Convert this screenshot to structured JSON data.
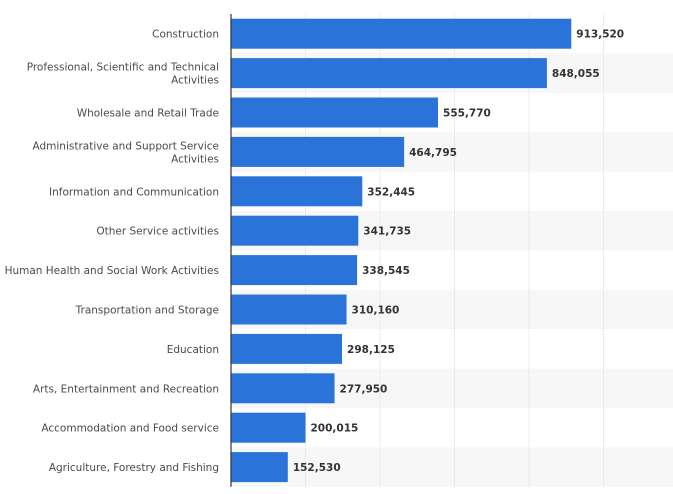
{
  "chart_data": {
    "type": "bar",
    "orientation": "horizontal",
    "categories": [
      "Construction",
      "Professional, Scientific and Technical Activities",
      "Wholesale and Retail Trade",
      "Administrative and Support Service Activities",
      "Information and Communication",
      "Other Service activities",
      "Human Health and Social Work Activities",
      "Transportation and Storage",
      "Education",
      "Arts, Entertainment and Recreation",
      "Accommodation and Food service",
      "Agriculture, Forestry and Fishing"
    ],
    "category_lines": [
      [
        "Construction"
      ],
      [
        "Professional, Scientific and Technical",
        "Activities"
      ],
      [
        "Wholesale and Retail Trade"
      ],
      [
        "Administrative and Support Service",
        "Activities"
      ],
      [
        "Information and Communication"
      ],
      [
        "Other Service activities"
      ],
      [
        "Human Health and Social Work Activities"
      ],
      [
        "Transportation and Storage"
      ],
      [
        "Education"
      ],
      [
        "Arts, Entertainment and Recreation"
      ],
      [
        "Accommodation and Food service"
      ],
      [
        "Agriculture, Forestry and Fishing"
      ]
    ],
    "values": [
      913520,
      848055,
      555770,
      464795,
      352445,
      341735,
      338545,
      310160,
      298125,
      277950,
      200015,
      152530
    ],
    "data_labels": [
      "913,520",
      "848,055",
      "555,770",
      "464,795",
      "352,445",
      "341,735",
      "338,545",
      "310,160",
      "298,125",
      "277,950",
      "200,015",
      "152,530"
    ],
    "xlim": [
      0,
      1200000
    ],
    "gridlines": [
      200000,
      400000,
      600000,
      800000,
      1000000
    ],
    "grid": true,
    "tick_labels_shown": false,
    "title": "",
    "xlabel": "",
    "ylabel": "",
    "colors": {
      "bar": "#2a74d9",
      "band": "#f7f7f7",
      "grid": "#dcdcdc",
      "axis": "#333333"
    }
  }
}
